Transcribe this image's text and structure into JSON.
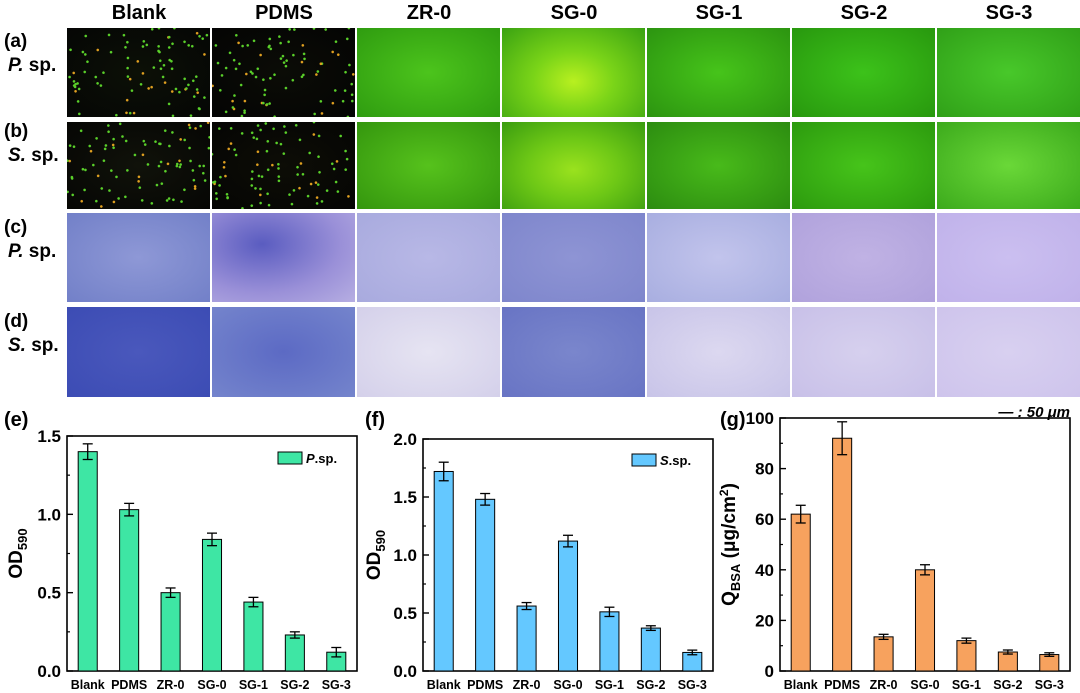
{
  "columns": [
    "Blank",
    "PDMS",
    "ZR-0",
    "SG-0",
    "SG-1",
    "SG-2",
    "SG-3"
  ],
  "rows": [
    {
      "letter": "(a)",
      "species_italic": "P.",
      "species_rest": " sp.",
      "kind": "fluorescence"
    },
    {
      "letter": "(b)",
      "species_italic": "S.",
      "species_rest": " sp.",
      "kind": "fluorescence"
    },
    {
      "letter": "(c)",
      "species_italic": "P.",
      "species_rest": " sp.",
      "kind": "stain"
    },
    {
      "letter": "(d)",
      "species_italic": "S.",
      "species_rest": " sp.",
      "kind": "stain"
    }
  ],
  "scale_bar": "— : 50 μm",
  "colors": {
    "chart_e": "#3ee6a4",
    "chart_f": "#64c8ff",
    "chart_g": "#f7a25e",
    "fluor_bright": "#4ad01c",
    "fluor_dark": "#0a0a06",
    "stain_light": "#c6bde9",
    "stain_dark": "#5660c4"
  },
  "chart_data": [
    {
      "panel": "(e)",
      "type": "bar",
      "categories": [
        "Blank",
        "PDMS",
        "ZR-0",
        "SG-0",
        "SG-1",
        "SG-2",
        "SG-3"
      ],
      "series": [
        {
          "name": "P.sp.",
          "values": [
            1.4,
            1.03,
            0.5,
            0.84,
            0.44,
            0.23,
            0.12
          ],
          "errors": [
            0.05,
            0.04,
            0.03,
            0.04,
            0.03,
            0.02,
            0.03
          ]
        }
      ],
      "ylabel_main": "OD",
      "ylabel_sub": "590",
      "ylim": [
        0,
        1.5
      ],
      "yticks": [
        0.0,
        0.5,
        1.0,
        1.5
      ],
      "ytick_labels": [
        "0.0",
        "0.5",
        "1.0",
        "1.5"
      ],
      "legend_italic": "P",
      "legend_rest": ".sp."
    },
    {
      "panel": "(f)",
      "type": "bar",
      "categories": [
        "Blank",
        "PDMS",
        "ZR-0",
        "SG-0",
        "SG-1",
        "SG-2",
        "SG-3"
      ],
      "series": [
        {
          "name": "S.sp.",
          "values": [
            1.72,
            1.48,
            0.56,
            1.12,
            0.51,
            0.37,
            0.16
          ],
          "errors": [
            0.08,
            0.05,
            0.03,
            0.05,
            0.04,
            0.02,
            0.02
          ]
        }
      ],
      "ylabel_main": "OD",
      "ylabel_sub": "590",
      "ylim": [
        0,
        2.0
      ],
      "yticks": [
        0.0,
        0.5,
        1.0,
        1.5,
        2.0
      ],
      "ytick_labels": [
        "0.0",
        "0.5",
        "1.0",
        "1.5",
        "2.0"
      ],
      "legend_italic": "S",
      "legend_rest": ".sp."
    },
    {
      "panel": "(g)",
      "type": "bar",
      "categories": [
        "Blank",
        "PDMS",
        "ZR-0",
        "SG-0",
        "SG-1",
        "SG-2",
        "SG-3"
      ],
      "series": [
        {
          "name": "",
          "values": [
            62,
            92,
            13.5,
            40,
            12,
            7.5,
            6.5
          ],
          "errors": [
            3.5,
            6.5,
            1.0,
            2.0,
            1.0,
            0.8,
            0.7
          ]
        }
      ],
      "ylabel_main": "Q",
      "ylabel_sub": "BSA",
      "ylabel_unit": " (μg/cm",
      "ylabel_sup": "2",
      "ylabel_close": ")",
      "ylim": [
        0,
        100
      ],
      "yticks": [
        0,
        20,
        40,
        60,
        80,
        100
      ],
      "ytick_labels": [
        "0",
        "20",
        "40",
        "60",
        "80",
        "100"
      ]
    }
  ]
}
